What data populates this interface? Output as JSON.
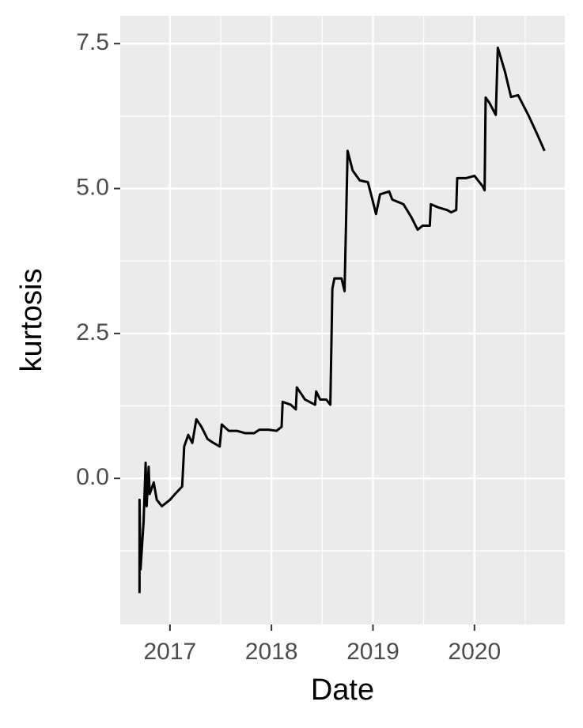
{
  "chart_data": {
    "type": "line",
    "x_label": "Date",
    "y_label": "kurtosis",
    "x": [
      2016.7,
      2016.7,
      2016.71,
      2016.74,
      2016.76,
      2016.77,
      2016.79,
      2016.8,
      2016.84,
      2016.87,
      2016.92,
      2017.0,
      2017.05,
      2017.12,
      2017.14,
      2017.18,
      2017.22,
      2017.26,
      2017.31,
      2017.37,
      2017.43,
      2017.49,
      2017.51,
      2017.58,
      2017.66,
      2017.74,
      2017.83,
      2017.88,
      2017.97,
      2018.05,
      2018.1,
      2018.11,
      2018.19,
      2018.24,
      2018.25,
      2018.33,
      2018.43,
      2018.44,
      2018.48,
      2018.54,
      2018.58,
      2018.6,
      2018.62,
      2018.69,
      2018.72,
      2018.75,
      2018.8,
      2018.87,
      2018.95,
      2018.99,
      2019.03,
      2019.07,
      2019.16,
      2019.19,
      2019.3,
      2019.38,
      2019.44,
      2019.49,
      2019.56,
      2019.57,
      2019.65,
      2019.73,
      2019.77,
      2019.82,
      2019.83,
      2019.92,
      2020.0,
      2020.08,
      2020.1,
      2020.11,
      2020.15,
      2020.21,
      2020.23,
      2020.3,
      2020.36,
      2020.43,
      2020.53,
      2020.62,
      2020.69
    ],
    "series": [
      {
        "color": "#000000",
        "values": [
          -1.98,
          -0.37,
          -1.57,
          -0.75,
          0.27,
          -0.48,
          0.2,
          -0.27,
          -0.07,
          -0.37,
          -0.48,
          -0.37,
          -0.27,
          -0.14,
          0.55,
          0.75,
          0.61,
          1.02,
          0.89,
          0.68,
          0.61,
          0.55,
          0.93,
          0.82,
          0.82,
          0.78,
          0.78,
          0.84,
          0.84,
          0.82,
          0.89,
          1.32,
          1.27,
          1.19,
          1.57,
          1.36,
          1.27,
          1.5,
          1.36,
          1.36,
          1.27,
          3.27,
          3.45,
          3.45,
          3.23,
          5.65,
          5.31,
          5.14,
          5.11,
          4.84,
          4.56,
          4.9,
          4.95,
          4.81,
          4.73,
          4.5,
          4.29,
          4.36,
          4.36,
          4.73,
          4.67,
          4.63,
          4.59,
          4.63,
          5.18,
          5.18,
          5.22,
          5.04,
          4.97,
          6.57,
          6.47,
          6.27,
          7.43,
          7.02,
          6.58,
          6.61,
          6.27,
          5.93,
          5.65
        ]
      }
    ],
    "xlim": [
      2016.51,
      2020.89
    ],
    "xticks": [
      2017,
      2018,
      2019,
      2020
    ],
    "ylim": [
      -2.52,
      7.98
    ],
    "yticks": [
      {
        "value": 0,
        "label": "0.0"
      },
      {
        "value": 2.5,
        "label": "2.5"
      },
      {
        "value": 5,
        "label": "5.0"
      },
      {
        "value": 7.5,
        "label": "7.5"
      }
    ],
    "grid": true,
    "minor_grid": true,
    "panel_color": "#ebebeb"
  }
}
